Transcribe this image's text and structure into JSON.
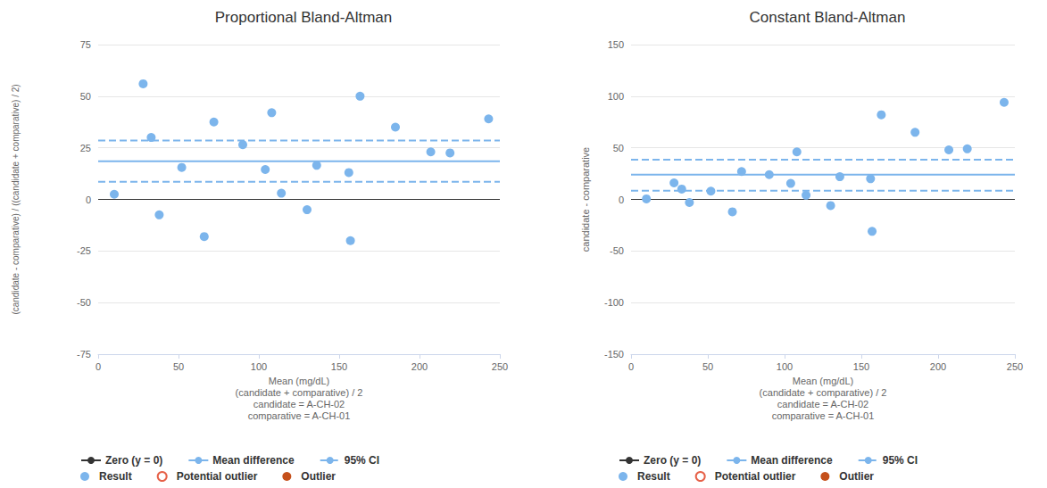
{
  "chart_data": [
    {
      "type": "scatter",
      "title": "Proportional Bland-Altman",
      "x_label": [
        "Mean (mg/dL)",
        "(candidate + comparative) / 2",
        "candidate = A-CH-02",
        "comparative = A-CH-01"
      ],
      "y_label": "(candidate - comparative) / ((candidate + comparative) / 2)",
      "xlim": [
        0,
        250
      ],
      "xticks": [
        0,
        50,
        100,
        150,
        200,
        250
      ],
      "ylim": [
        -75,
        75
      ],
      "yticks": [
        -75,
        -50,
        -25,
        0,
        25,
        50,
        75
      ],
      "grid": true,
      "legend": "bottom",
      "lines": [
        {
          "name": "Zero (y = 0)",
          "values": [
            0
          ],
          "color": "#333333",
          "line_style": "solid"
        },
        {
          "name": "Mean difference",
          "values": [
            18.5
          ],
          "color": "#7cb5ec",
          "line_style": "solid"
        },
        {
          "name": "95% CI",
          "values": [
            8.5,
            28.5
          ],
          "color": "#7cb5ec",
          "line_style": "dashed"
        }
      ],
      "series": [
        {
          "name": "Result",
          "color": "#7cb5ec",
          "marker": "circle",
          "x": [
            10,
            28,
            33,
            38,
            52,
            66,
            72,
            90,
            104,
            108,
            114,
            130,
            136,
            156,
            157,
            163,
            185,
            207,
            219,
            243
          ],
          "values": [
            2.5,
            56,
            30,
            -7.5,
            15.5,
            -18,
            37.5,
            26.5,
            14.5,
            42,
            3,
            -5,
            16.5,
            13,
            -20,
            50,
            35,
            23,
            22.5,
            39
          ]
        },
        {
          "name": "Potential outlier",
          "color": "#e03a1a",
          "marker": "open circle",
          "x": [],
          "values": []
        },
        {
          "name": "Outlier",
          "color": "#c5501b",
          "marker": "circle",
          "x": [],
          "values": []
        }
      ]
    },
    {
      "type": "scatter",
      "title": "Constant Bland-Altman",
      "x_label": [
        "Mean (mg/dL)",
        "(candidate + comparative) / 2",
        "candidate = A-CH-02",
        "comparative = A-CH-01"
      ],
      "y_label": "candidate - comparative",
      "xlim": [
        0,
        250
      ],
      "xticks": [
        0,
        50,
        100,
        150,
        200,
        250
      ],
      "ylim": [
        -150,
        150
      ],
      "yticks": [
        -150,
        -100,
        -50,
        0,
        50,
        100,
        150
      ],
      "grid": true,
      "legend": "bottom",
      "lines": [
        {
          "name": "Zero (y = 0)",
          "values": [
            0
          ],
          "color": "#333333",
          "line_style": "solid"
        },
        {
          "name": "Mean difference",
          "values": [
            24
          ],
          "color": "#7cb5ec",
          "line_style": "solid"
        },
        {
          "name": "95% CI",
          "values": [
            8.5,
            38.5
          ],
          "color": "#7cb5ec",
          "line_style": "dashed"
        }
      ],
      "series": [
        {
          "name": "Result",
          "color": "#7cb5ec",
          "marker": "circle",
          "x": [
            10,
            28,
            33,
            38,
            52,
            66,
            72,
            90,
            104,
            108,
            114,
            130,
            136,
            156,
            157,
            163,
            185,
            207,
            219,
            243
          ],
          "values": [
            0.5,
            16,
            10,
            -3,
            8,
            -12,
            27,
            24,
            15.5,
            46,
            4,
            -6,
            22,
            20,
            -31,
            82,
            65,
            48,
            49,
            94
          ]
        },
        {
          "name": "Potential outlier",
          "color": "#e03a1a",
          "marker": "open circle",
          "x": [],
          "values": []
        },
        {
          "name": "Outlier",
          "color": "#c5501b",
          "marker": "circle",
          "x": [],
          "values": []
        }
      ]
    }
  ]
}
